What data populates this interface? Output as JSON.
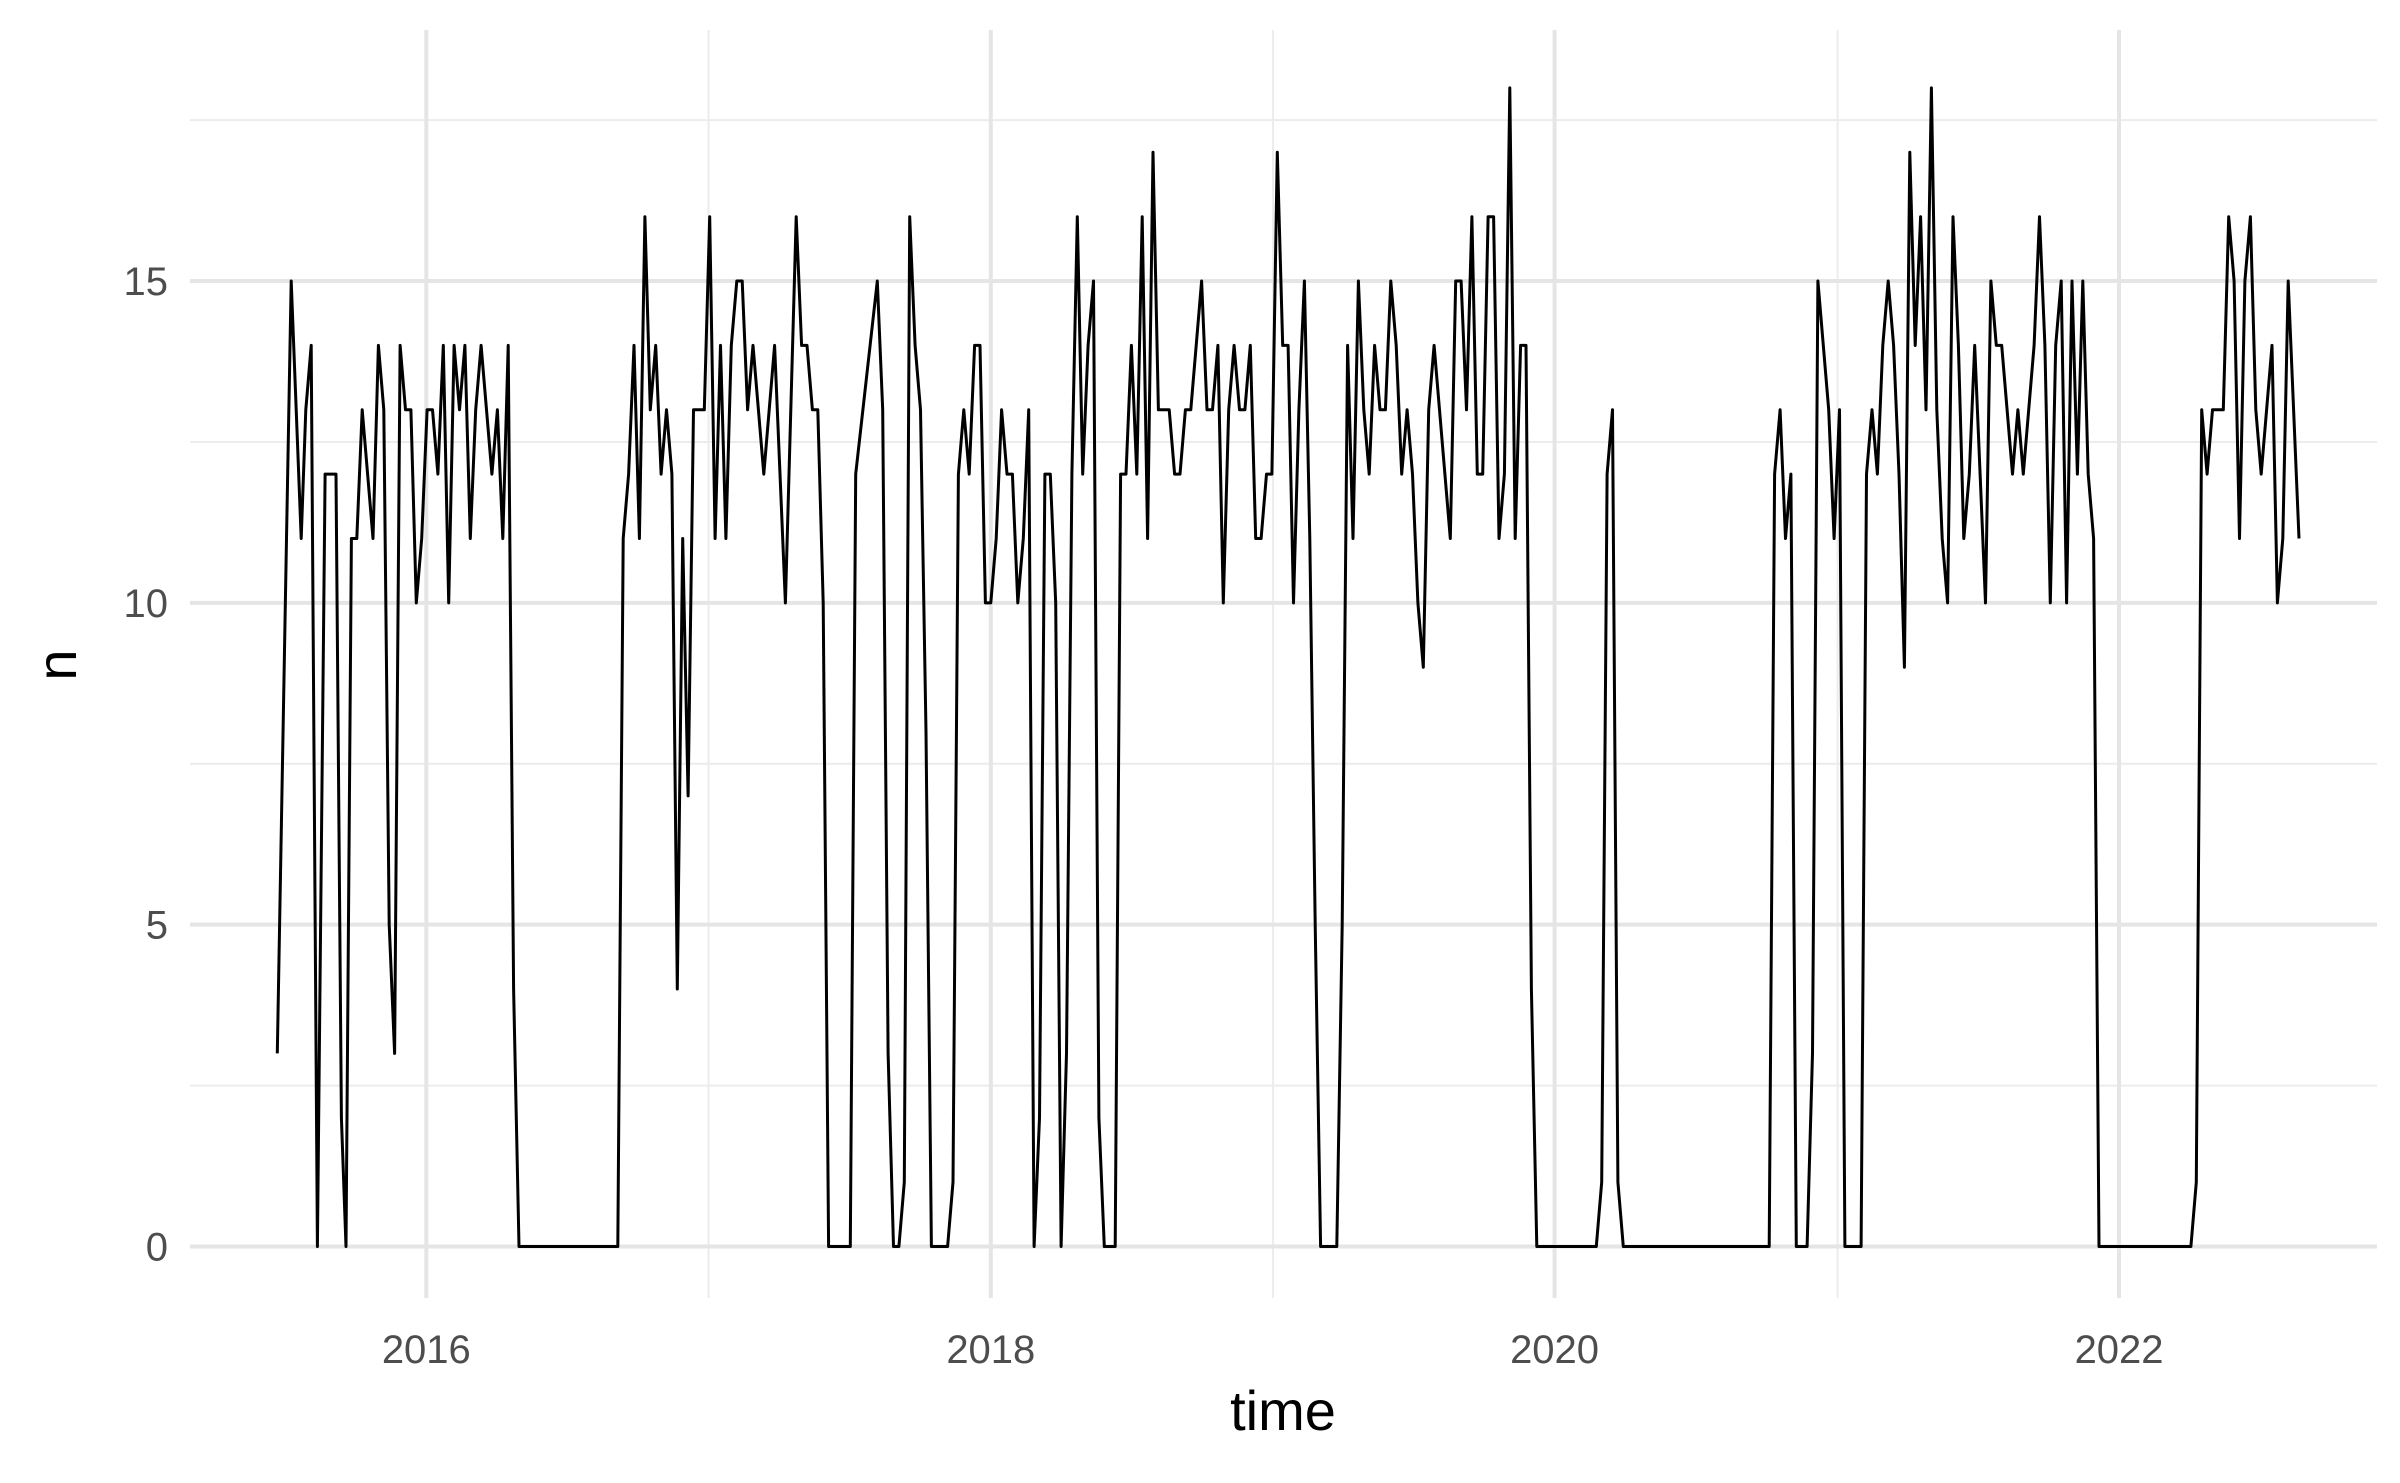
{
  "chart_data": {
    "type": "line",
    "title": "",
    "xlabel": "time",
    "ylabel": "n",
    "x_tick_labels": [
      "2016",
      "2018",
      "2020",
      "2022"
    ],
    "y_tick_labels": [
      "0",
      "5",
      "10",
      "15"
    ],
    "x_ticks": [
      "2016-01-01",
      "2018-01-01",
      "2020-01-01",
      "2022-01-01"
    ],
    "y_ticks": [
      0,
      5,
      10,
      15
    ],
    "xlim": [
      "2015-03-01",
      "2022-12-01"
    ],
    "ylim": [
      -0.8,
      18.9
    ],
    "grid": true,
    "line_color": "#000000",
    "series": [
      {
        "points": [
          [
            "2015-06-22",
            3
          ],
          [
            "2015-07-04",
            11
          ],
          [
            "2015-07-10",
            15
          ],
          [
            "2015-07-23",
            11
          ],
          [
            "2015-07-29",
            13
          ],
          [
            "2015-08-05",
            14
          ],
          [
            "2015-08-13",
            0
          ],
          [
            "2015-08-23",
            12
          ],
          [
            "2015-08-30",
            12
          ],
          [
            "2015-09-06",
            12
          ],
          [
            "2015-09-13",
            2
          ],
          [
            "2015-09-19",
            0
          ],
          [
            "2015-09-26",
            11
          ],
          [
            "2015-10-03",
            11
          ],
          [
            "2015-10-10",
            13
          ],
          [
            "2015-10-17",
            12
          ],
          [
            "2015-10-24",
            11
          ],
          [
            "2015-10-31",
            14
          ],
          [
            "2015-11-07",
            13
          ],
          [
            "2015-11-14",
            5
          ],
          [
            "2015-11-21",
            3
          ],
          [
            "2015-11-28",
            14
          ],
          [
            "2015-12-05",
            13
          ],
          [
            "2015-12-12",
            13
          ],
          [
            "2015-12-19",
            10
          ],
          [
            "2015-12-26",
            11
          ],
          [
            "2016-01-02",
            13
          ],
          [
            "2016-01-09",
            13
          ],
          [
            "2016-01-16",
            12
          ],
          [
            "2016-01-23",
            14
          ],
          [
            "2016-01-30",
            10
          ],
          [
            "2016-02-06",
            14
          ],
          [
            "2016-02-13",
            13
          ],
          [
            "2016-02-20",
            14
          ],
          [
            "2016-02-27",
            11
          ],
          [
            "2016-03-05",
            13
          ],
          [
            "2016-03-12",
            14
          ],
          [
            "2016-03-19",
            13
          ],
          [
            "2016-03-26",
            12
          ],
          [
            "2016-04-02",
            13
          ],
          [
            "2016-04-09",
            11
          ],
          [
            "2016-04-16",
            14
          ],
          [
            "2016-04-23",
            4
          ],
          [
            "2016-04-30",
            0
          ],
          [
            "2016-09-05",
            0
          ],
          [
            "2016-09-12",
            11
          ],
          [
            "2016-09-19",
            12
          ],
          [
            "2016-09-26",
            14
          ],
          [
            "2016-10-03",
            11
          ],
          [
            "2016-10-10",
            16
          ],
          [
            "2016-10-17",
            13
          ],
          [
            "2016-10-24",
            14
          ],
          [
            "2016-10-31",
            12
          ],
          [
            "2016-11-07",
            13
          ],
          [
            "2016-11-14",
            12
          ],
          [
            "2016-11-21",
            4
          ],
          [
            "2016-11-28",
            11
          ],
          [
            "2016-12-05",
            7
          ],
          [
            "2016-12-12",
            13
          ],
          [
            "2016-12-19",
            13
          ],
          [
            "2016-12-26",
            13
          ],
          [
            "2017-01-02",
            16
          ],
          [
            "2017-01-09",
            11
          ],
          [
            "2017-01-16",
            14
          ],
          [
            "2017-01-23",
            11
          ],
          [
            "2017-01-30",
            14
          ],
          [
            "2017-02-06",
            15
          ],
          [
            "2017-02-13",
            15
          ],
          [
            "2017-02-20",
            13
          ],
          [
            "2017-02-27",
            14
          ],
          [
            "2017-03-13",
            12
          ],
          [
            "2017-03-27",
            14
          ],
          [
            "2017-04-10",
            10
          ],
          [
            "2017-04-24",
            16
          ],
          [
            "2017-05-01",
            14
          ],
          [
            "2017-05-08",
            14
          ],
          [
            "2017-05-15",
            13
          ],
          [
            "2017-05-22",
            13
          ],
          [
            "2017-05-29",
            10
          ],
          [
            "2017-06-05",
            0
          ],
          [
            "2017-07-03",
            0
          ],
          [
            "2017-07-10",
            12
          ],
          [
            "2017-08-07",
            15
          ],
          [
            "2017-08-14",
            13
          ],
          [
            "2017-08-21",
            3
          ],
          [
            "2017-08-28",
            0
          ],
          [
            "2017-09-04",
            0
          ],
          [
            "2017-09-11",
            1
          ],
          [
            "2017-09-18",
            16
          ],
          [
            "2017-09-25",
            14
          ],
          [
            "2017-10-02",
            13
          ],
          [
            "2017-10-09",
            8
          ],
          [
            "2017-10-16",
            0
          ],
          [
            "2017-11-06",
            0
          ],
          [
            "2017-11-13",
            1
          ],
          [
            "2017-11-20",
            12
          ],
          [
            "2017-11-27",
            13
          ],
          [
            "2017-12-04",
            12
          ],
          [
            "2017-12-11",
            14
          ],
          [
            "2017-12-18",
            14
          ],
          [
            "2017-12-25",
            10
          ],
          [
            "2018-01-01",
            10
          ],
          [
            "2018-01-08",
            11
          ],
          [
            "2018-01-15",
            13
          ],
          [
            "2018-01-22",
            12
          ],
          [
            "2018-01-29",
            12
          ],
          [
            "2018-02-05",
            10
          ],
          [
            "2018-02-12",
            11
          ],
          [
            "2018-02-19",
            13
          ],
          [
            "2018-02-26",
            0
          ],
          [
            "2018-03-05",
            2
          ],
          [
            "2018-03-12",
            12
          ],
          [
            "2018-03-19",
            12
          ],
          [
            "2018-03-26",
            10
          ],
          [
            "2018-04-02",
            0
          ],
          [
            "2018-04-09",
            3
          ],
          [
            "2018-04-16",
            12
          ],
          [
            "2018-04-23",
            16
          ],
          [
            "2018-04-30",
            12
          ],
          [
            "2018-05-07",
            14
          ],
          [
            "2018-05-14",
            15
          ],
          [
            "2018-05-21",
            2
          ],
          [
            "2018-05-28",
            0
          ],
          [
            "2018-06-11",
            0
          ],
          [
            "2018-06-18",
            12
          ],
          [
            "2018-06-25",
            12
          ],
          [
            "2018-07-02",
            14
          ],
          [
            "2018-07-09",
            12
          ],
          [
            "2018-07-16",
            16
          ],
          [
            "2018-07-23",
            11
          ],
          [
            "2018-07-30",
            17
          ],
          [
            "2018-08-06",
            13
          ],
          [
            "2018-08-13",
            13
          ],
          [
            "2018-08-20",
            13
          ],
          [
            "2018-08-27",
            12
          ],
          [
            "2018-09-03",
            12
          ],
          [
            "2018-09-10",
            13
          ],
          [
            "2018-09-17",
            13
          ],
          [
            "2018-09-24",
            14
          ],
          [
            "2018-10-01",
            15
          ],
          [
            "2018-10-08",
            13
          ],
          [
            "2018-10-15",
            13
          ],
          [
            "2018-10-22",
            14
          ],
          [
            "2018-10-29",
            10
          ],
          [
            "2018-11-05",
            13
          ],
          [
            "2018-11-12",
            14
          ],
          [
            "2018-11-19",
            13
          ],
          [
            "2018-11-26",
            13
          ],
          [
            "2018-12-03",
            14
          ],
          [
            "2018-12-10",
            11
          ],
          [
            "2018-12-17",
            11
          ],
          [
            "2018-12-24",
            12
          ],
          [
            "2018-12-31",
            12
          ],
          [
            "2019-01-07",
            17
          ],
          [
            "2019-01-14",
            14
          ],
          [
            "2019-01-21",
            14
          ],
          [
            "2019-01-28",
            10
          ],
          [
            "2019-02-04",
            13
          ],
          [
            "2019-02-11",
            15
          ],
          [
            "2019-02-18",
            11
          ],
          [
            "2019-02-25",
            5
          ],
          [
            "2019-03-04",
            0
          ],
          [
            "2019-03-25",
            0
          ],
          [
            "2019-04-01",
            5
          ],
          [
            "2019-04-08",
            14
          ],
          [
            "2019-04-15",
            11
          ],
          [
            "2019-04-22",
            15
          ],
          [
            "2019-04-29",
            13
          ],
          [
            "2019-05-06",
            12
          ],
          [
            "2019-05-13",
            14
          ],
          [
            "2019-05-20",
            13
          ],
          [
            "2019-05-27",
            13
          ],
          [
            "2019-06-03",
            15
          ],
          [
            "2019-06-10",
            14
          ],
          [
            "2019-06-17",
            12
          ],
          [
            "2019-06-24",
            13
          ],
          [
            "2019-07-01",
            12
          ],
          [
            "2019-07-08",
            10
          ],
          [
            "2019-07-15",
            9
          ],
          [
            "2019-07-22",
            13
          ],
          [
            "2019-07-29",
            14
          ],
          [
            "2019-08-05",
            13
          ],
          [
            "2019-08-12",
            12
          ],
          [
            "2019-08-19",
            11
          ],
          [
            "2019-08-26",
            15
          ],
          [
            "2019-09-02",
            15
          ],
          [
            "2019-09-09",
            13
          ],
          [
            "2019-09-16",
            16
          ],
          [
            "2019-09-23",
            12
          ],
          [
            "2019-09-30",
            12
          ],
          [
            "2019-10-07",
            16
          ],
          [
            "2019-10-14",
            16
          ],
          [
            "2019-10-21",
            11
          ],
          [
            "2019-10-28",
            12
          ],
          [
            "2019-11-04",
            18
          ],
          [
            "2019-11-11",
            11
          ],
          [
            "2019-11-18",
            14
          ],
          [
            "2019-11-25",
            14
          ],
          [
            "2019-12-02",
            4
          ],
          [
            "2019-12-09",
            0
          ],
          [
            "2020-02-24",
            0
          ],
          [
            "2020-03-02",
            1
          ],
          [
            "2020-03-09",
            12
          ],
          [
            "2020-03-16",
            13
          ],
          [
            "2020-03-23",
            1
          ],
          [
            "2020-03-30",
            0
          ],
          [
            "2020-10-05",
            0
          ],
          [
            "2020-10-12",
            12
          ],
          [
            "2020-10-19",
            13
          ],
          [
            "2020-10-26",
            11
          ],
          [
            "2020-11-02",
            12
          ],
          [
            "2020-11-09",
            0
          ],
          [
            "2020-11-23",
            0
          ],
          [
            "2020-11-30",
            3
          ],
          [
            "2020-12-07",
            15
          ],
          [
            "2020-12-14",
            14
          ],
          [
            "2020-12-21",
            13
          ],
          [
            "2020-12-28",
            11
          ],
          [
            "2021-01-04",
            13
          ],
          [
            "2021-01-11",
            0
          ],
          [
            "2021-02-01",
            0
          ],
          [
            "2021-02-08",
            12
          ],
          [
            "2021-02-15",
            13
          ],
          [
            "2021-02-22",
            12
          ],
          [
            "2021-03-01",
            14
          ],
          [
            "2021-03-08",
            15
          ],
          [
            "2021-03-15",
            14
          ],
          [
            "2021-03-22",
            12
          ],
          [
            "2021-03-29",
            9
          ],
          [
            "2021-04-05",
            17
          ],
          [
            "2021-04-12",
            14
          ],
          [
            "2021-04-19",
            16
          ],
          [
            "2021-04-26",
            13
          ],
          [
            "2021-05-03",
            18
          ],
          [
            "2021-05-10",
            13
          ],
          [
            "2021-05-17",
            11
          ],
          [
            "2021-05-24",
            10
          ],
          [
            "2021-05-31",
            16
          ],
          [
            "2021-06-07",
            14
          ],
          [
            "2021-06-14",
            11
          ],
          [
            "2021-06-21",
            12
          ],
          [
            "2021-06-28",
            14
          ],
          [
            "2021-07-05",
            12
          ],
          [
            "2021-07-12",
            10
          ],
          [
            "2021-07-19",
            15
          ],
          [
            "2021-07-26",
            14
          ],
          [
            "2021-08-02",
            14
          ],
          [
            "2021-08-09",
            13
          ],
          [
            "2021-08-16",
            12
          ],
          [
            "2021-08-23",
            13
          ],
          [
            "2021-08-30",
            12
          ],
          [
            "2021-09-06",
            13
          ],
          [
            "2021-09-13",
            14
          ],
          [
            "2021-09-20",
            16
          ],
          [
            "2021-09-27",
            14
          ],
          [
            "2021-10-04",
            10
          ],
          [
            "2021-10-11",
            14
          ],
          [
            "2021-10-18",
            15
          ],
          [
            "2021-10-25",
            10
          ],
          [
            "2021-11-01",
            15
          ],
          [
            "2021-11-08",
            12
          ],
          [
            "2021-11-15",
            15
          ],
          [
            "2021-11-22",
            12
          ],
          [
            "2021-11-29",
            11
          ],
          [
            "2021-12-06",
            0
          ],
          [
            "2022-04-04",
            0
          ],
          [
            "2022-04-11",
            1
          ],
          [
            "2022-04-18",
            13
          ],
          [
            "2022-04-25",
            12
          ],
          [
            "2022-05-02",
            13
          ],
          [
            "2022-05-09",
            13
          ],
          [
            "2022-05-16",
            13
          ],
          [
            "2022-05-23",
            16
          ],
          [
            "2022-05-30",
            15
          ],
          [
            "2022-06-06",
            11
          ],
          [
            "2022-06-13",
            15
          ],
          [
            "2022-06-20",
            16
          ],
          [
            "2022-06-27",
            13
          ],
          [
            "2022-07-04",
            12
          ],
          [
            "2022-07-11",
            13
          ],
          [
            "2022-07-18",
            14
          ],
          [
            "2022-07-25",
            10
          ],
          [
            "2022-08-01",
            11
          ],
          [
            "2022-08-08",
            15
          ],
          [
            "2022-08-15",
            13
          ],
          [
            "2022-08-22",
            11
          ]
        ]
      }
    ]
  }
}
